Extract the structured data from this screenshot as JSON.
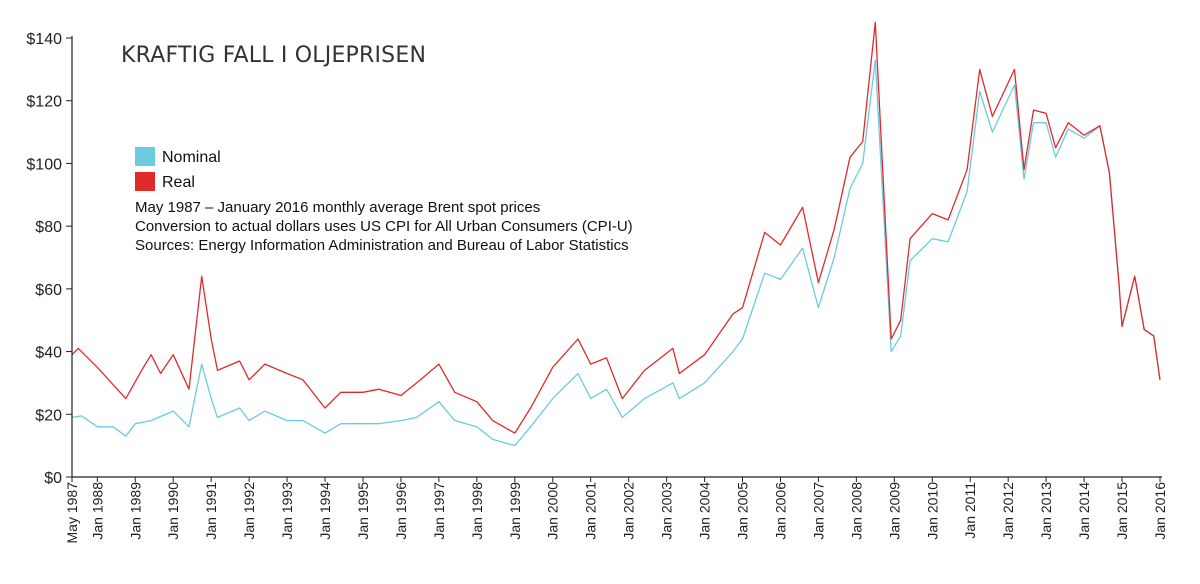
{
  "chart_data": {
    "type": "line",
    "title": "KRAFTIG FALL I OLJEPRISEN",
    "notes": [
      "May 1987 – January 2016 monthly average Brent spot prices",
      "Conversion to actual dollars uses US CPI for All Urban Consumers (CPI-U)",
      "Sources: Energy Information Administration and Bureau of Labor Statistics"
    ],
    "xlabel": "",
    "ylabel": "",
    "ylim": [
      0,
      140
    ],
    "xlim": [
      "1987-05",
      "2016-01"
    ],
    "y_ticks": [
      "$0",
      "$20",
      "$40",
      "$60",
      "$80",
      "$100",
      "$120",
      "$140"
    ],
    "y_tick_values": [
      0,
      20,
      40,
      60,
      80,
      100,
      120,
      140
    ],
    "x_ticks": [
      "May 1987",
      "Jan 1988",
      "Jan 1989",
      "Jan 1990",
      "Jan 1991",
      "Jan 1992",
      "Jan 1993",
      "Jan 1994",
      "Jan 1995",
      "Jan 1996",
      "Jan 1997",
      "Jan 1998",
      "Jan 1999",
      "Jan 2000",
      "Jan 2001",
      "Jan 2002",
      "Jan 2003",
      "Jan 2004",
      "Jan 2005",
      "Jan 2006",
      "Jan 2007",
      "Jan 2008",
      "Jan 2009",
      "Jan 2010",
      "Jan 2011",
      "Jan 2012",
      "Jan 2013",
      "Jan 2014",
      "Jan 2015",
      "Jan 2016"
    ],
    "x_tick_dates": [
      "1987-05",
      "1988-01",
      "1989-01",
      "1990-01",
      "1991-01",
      "1992-01",
      "1993-01",
      "1994-01",
      "1995-01",
      "1996-01",
      "1997-01",
      "1998-01",
      "1999-01",
      "2000-01",
      "2001-01",
      "2002-01",
      "2003-01",
      "2004-01",
      "2005-01",
      "2006-01",
      "2007-01",
      "2008-01",
      "2009-01",
      "2010-01",
      "2011-01",
      "2012-01",
      "2013-01",
      "2014-01",
      "2015-01",
      "2016-01"
    ],
    "grid": false,
    "legend_position": "top-left",
    "series": [
      {
        "name": "Nominal",
        "color": "#6ccbe0",
        "points": [
          [
            "1987-05",
            19
          ],
          [
            "1987-08",
            19.5
          ],
          [
            "1988-01",
            16
          ],
          [
            "1988-06",
            16
          ],
          [
            "1988-10",
            13
          ],
          [
            "1989-01",
            17
          ],
          [
            "1989-06",
            18
          ],
          [
            "1990-01",
            21
          ],
          [
            "1990-06",
            16
          ],
          [
            "1990-10",
            36
          ],
          [
            "1991-01",
            25
          ],
          [
            "1991-03",
            19
          ],
          [
            "1991-10",
            22
          ],
          [
            "1992-01",
            18
          ],
          [
            "1992-06",
            21
          ],
          [
            "1993-01",
            18
          ],
          [
            "1993-06",
            18
          ],
          [
            "1994-01",
            14
          ],
          [
            "1994-06",
            17
          ],
          [
            "1995-01",
            17
          ],
          [
            "1995-06",
            17
          ],
          [
            "1996-01",
            18
          ],
          [
            "1996-06",
            19
          ],
          [
            "1997-01",
            24
          ],
          [
            "1997-06",
            18
          ],
          [
            "1998-01",
            16
          ],
          [
            "1998-06",
            12
          ],
          [
            "1999-01",
            10
          ],
          [
            "1999-06",
            16
          ],
          [
            "2000-01",
            25
          ],
          [
            "2000-09",
            33
          ],
          [
            "2001-01",
            25
          ],
          [
            "2001-06",
            28
          ],
          [
            "2001-11",
            19
          ],
          [
            "2002-06",
            25
          ],
          [
            "2003-03",
            30
          ],
          [
            "2003-05",
            25
          ],
          [
            "2004-01",
            30
          ],
          [
            "2004-10",
            40
          ],
          [
            "2005-01",
            44
          ],
          [
            "2005-08",
            65
          ],
          [
            "2006-01",
            63
          ],
          [
            "2006-08",
            73
          ],
          [
            "2007-01",
            54
          ],
          [
            "2007-06",
            70
          ],
          [
            "2007-11",
            92
          ],
          [
            "2008-03",
            100
          ],
          [
            "2008-07",
            133
          ],
          [
            "2008-12",
            40
          ],
          [
            "2009-03",
            45
          ],
          [
            "2009-06",
            69
          ],
          [
            "2010-01",
            76
          ],
          [
            "2010-06",
            75
          ],
          [
            "2010-12",
            91
          ],
          [
            "2011-04",
            123
          ],
          [
            "2011-08",
            110
          ],
          [
            "2012-03",
            125
          ],
          [
            "2012-06",
            95
          ],
          [
            "2012-09",
            113
          ],
          [
            "2013-01",
            113
          ],
          [
            "2013-04",
            102
          ],
          [
            "2013-08",
            111
          ],
          [
            "2014-01",
            108
          ],
          [
            "2014-06",
            112
          ],
          [
            "2014-09",
            97
          ],
          [
            "2014-12",
            62
          ],
          [
            "2015-01",
            48
          ],
          [
            "2015-05",
            64
          ],
          [
            "2015-08",
            47
          ],
          [
            "2015-11",
            45
          ],
          [
            "2016-01",
            31
          ]
        ]
      },
      {
        "name": "Real",
        "color": "#e02a2a",
        "points": [
          [
            "1987-05",
            39
          ],
          [
            "1987-07",
            41
          ],
          [
            "1988-01",
            35
          ],
          [
            "1988-10",
            25
          ],
          [
            "1989-03",
            34
          ],
          [
            "1989-06",
            39
          ],
          [
            "1989-09",
            33
          ],
          [
            "1990-01",
            39
          ],
          [
            "1990-06",
            28
          ],
          [
            "1990-10",
            64
          ],
          [
            "1991-01",
            44
          ],
          [
            "1991-03",
            34
          ],
          [
            "1991-10",
            37
          ],
          [
            "1992-01",
            31
          ],
          [
            "1992-06",
            36
          ],
          [
            "1993-01",
            33
          ],
          [
            "1993-06",
            31
          ],
          [
            "1994-01",
            22
          ],
          [
            "1994-06",
            27
          ],
          [
            "1995-01",
            27
          ],
          [
            "1995-06",
            28
          ],
          [
            "1996-01",
            26
          ],
          [
            "1996-06",
            30
          ],
          [
            "1997-01",
            36
          ],
          [
            "1997-06",
            27
          ],
          [
            "1998-01",
            24
          ],
          [
            "1998-06",
            18
          ],
          [
            "1999-01",
            14
          ],
          [
            "1999-06",
            22
          ],
          [
            "2000-01",
            35
          ],
          [
            "2000-09",
            44
          ],
          [
            "2001-01",
            36
          ],
          [
            "2001-06",
            38
          ],
          [
            "2001-11",
            25
          ],
          [
            "2002-06",
            34
          ],
          [
            "2003-03",
            41
          ],
          [
            "2003-05",
            33
          ],
          [
            "2004-01",
            39
          ],
          [
            "2004-10",
            52
          ],
          [
            "2005-01",
            54
          ],
          [
            "2005-08",
            78
          ],
          [
            "2006-01",
            74
          ],
          [
            "2006-08",
            86
          ],
          [
            "2007-01",
            62
          ],
          [
            "2007-06",
            79
          ],
          [
            "2007-11",
            102
          ],
          [
            "2008-03",
            107
          ],
          [
            "2008-07",
            145
          ],
          [
            "2008-12",
            44
          ],
          [
            "2009-03",
            50
          ],
          [
            "2009-06",
            76
          ],
          [
            "2010-01",
            84
          ],
          [
            "2010-06",
            82
          ],
          [
            "2010-12",
            98
          ],
          [
            "2011-04",
            130
          ],
          [
            "2011-08",
            115
          ],
          [
            "2012-03",
            130
          ],
          [
            "2012-06",
            98
          ],
          [
            "2012-09",
            117
          ],
          [
            "2013-01",
            116
          ],
          [
            "2013-04",
            105
          ],
          [
            "2013-08",
            113
          ],
          [
            "2014-01",
            109
          ],
          [
            "2014-06",
            112
          ],
          [
            "2014-09",
            97
          ],
          [
            "2014-12",
            62
          ],
          [
            "2015-01",
            48
          ],
          [
            "2015-05",
            64
          ],
          [
            "2015-08",
            47
          ],
          [
            "2015-11",
            45
          ],
          [
            "2016-01",
            31
          ]
        ]
      }
    ]
  }
}
